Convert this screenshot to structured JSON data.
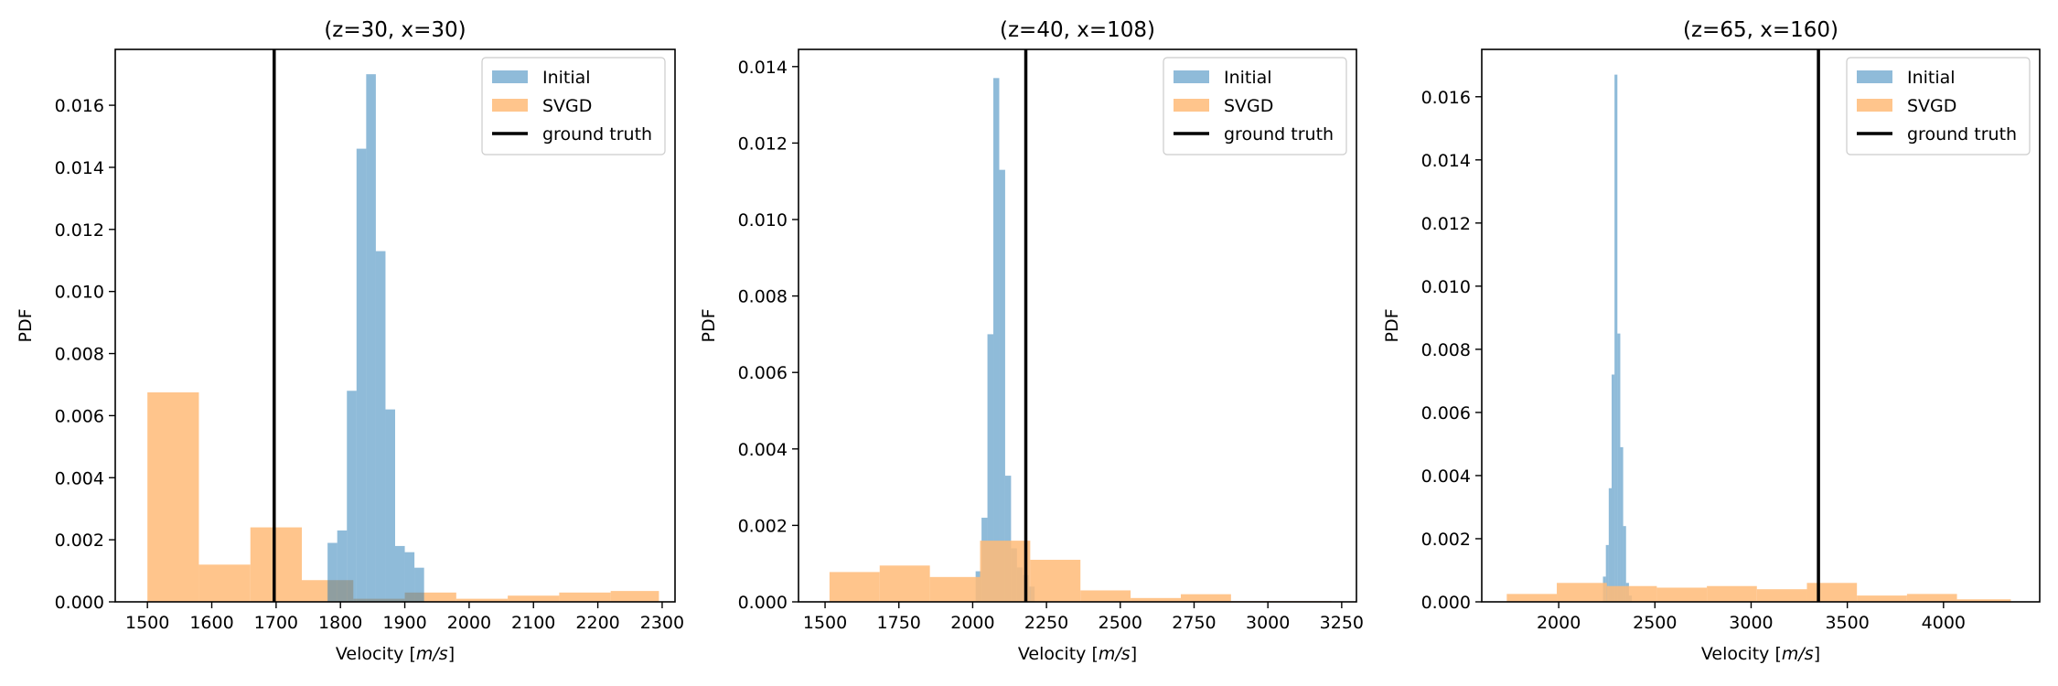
{
  "chart_data": [
    {
      "type": "histogram",
      "title": "(z=30, x=30)",
      "xlabel": "Velocity [m/s]",
      "ylabel": "PDF",
      "xlim": [
        1450,
        2320
      ],
      "ylim": [
        0,
        0.0178
      ],
      "xticks": [
        1500,
        1600,
        1700,
        1800,
        1900,
        2000,
        2100,
        2200,
        2300
      ],
      "xtick_labels": [
        "1500",
        "1600",
        "1700",
        "1800",
        "1900",
        "2000",
        "2100",
        "2200",
        "2300"
      ],
      "yticks": [
        0,
        0.002,
        0.004,
        0.006,
        0.008,
        0.01,
        0.012,
        0.014,
        0.016
      ],
      "ytick_labels": [
        "0.000",
        "0.002",
        "0.004",
        "0.006",
        "0.008",
        "0.010",
        "0.012",
        "0.014",
        "0.016"
      ],
      "ground_truth": 1697,
      "legend": "top-right",
      "series": [
        {
          "name": "SVGD",
          "color": "#ffbb78",
          "bins": [
            {
              "x0": 1500,
              "x1": 1580,
              "y": 0.00675
            },
            {
              "x0": 1580,
              "x1": 1660,
              "y": 0.0012
            },
            {
              "x0": 1660,
              "x1": 1740,
              "y": 0.0024
            },
            {
              "x0": 1740,
              "x1": 1820,
              "y": 0.0007
            },
            {
              "x0": 1820,
              "x1": 1900,
              "y": 0.0001
            },
            {
              "x0": 1900,
              "x1": 1980,
              "y": 0.0003
            },
            {
              "x0": 1980,
              "x1": 2060,
              "y": 0.0001
            },
            {
              "x0": 2060,
              "x1": 2140,
              "y": 0.0002
            },
            {
              "x0": 2140,
              "x1": 2220,
              "y": 0.0003
            },
            {
              "x0": 2220,
              "x1": 2295,
              "y": 0.00035
            }
          ]
        },
        {
          "name": "Initial",
          "color": "#1f77b4",
          "bins": [
            {
              "x0": 1780,
              "x1": 1795,
              "y": 0.0019
            },
            {
              "x0": 1795,
              "x1": 1810,
              "y": 0.0023
            },
            {
              "x0": 1810,
              "x1": 1825,
              "y": 0.0068
            },
            {
              "x0": 1825,
              "x1": 1840,
              "y": 0.0146
            },
            {
              "x0": 1840,
              "x1": 1855,
              "y": 0.017
            },
            {
              "x0": 1855,
              "x1": 1870,
              "y": 0.0113
            },
            {
              "x0": 1870,
              "x1": 1885,
              "y": 0.0062
            },
            {
              "x0": 1885,
              "x1": 1900,
              "y": 0.0018
            },
            {
              "x0": 1900,
              "x1": 1915,
              "y": 0.0016
            },
            {
              "x0": 1915,
              "x1": 1930,
              "y": 0.0011
            }
          ]
        }
      ]
    },
    {
      "type": "histogram",
      "title": "(z=40, x=108)",
      "xlabel": "Velocity [m/s]",
      "ylabel": "PDF",
      "xlim": [
        1410,
        3300
      ],
      "ylim": [
        0,
        0.01445
      ],
      "xticks": [
        1500,
        1750,
        2000,
        2250,
        2500,
        2750,
        3000,
        3250
      ],
      "xtick_labels": [
        "1500",
        "1750",
        "2000",
        "2250",
        "2500",
        "2750",
        "3000",
        "3250"
      ],
      "yticks": [
        0,
        0.002,
        0.004,
        0.006,
        0.008,
        0.01,
        0.012,
        0.014
      ],
      "ytick_labels": [
        "0.000",
        "0.002",
        "0.004",
        "0.006",
        "0.008",
        "0.010",
        "0.012",
        "0.014"
      ],
      "ground_truth": 2180,
      "legend": "top-right",
      "series": [
        {
          "name": "Initial",
          "color": "#1f77b4",
          "bins": [
            {
              "x0": 2010,
              "x1": 2030,
              "y": 0.0008
            },
            {
              "x0": 2030,
              "x1": 2050,
              "y": 0.0022
            },
            {
              "x0": 2050,
              "x1": 2070,
              "y": 0.007
            },
            {
              "x0": 2070,
              "x1": 2090,
              "y": 0.0137
            },
            {
              "x0": 2090,
              "x1": 2110,
              "y": 0.0113
            },
            {
              "x0": 2110,
              "x1": 2130,
              "y": 0.0033
            },
            {
              "x0": 2130,
              "x1": 2150,
              "y": 0.0014
            },
            {
              "x0": 2150,
              "x1": 2170,
              "y": 0.0009
            },
            {
              "x0": 2170,
              "x1": 2190,
              "y": 0.0007
            },
            {
              "x0": 2190,
              "x1": 2210,
              "y": 0.0004
            }
          ]
        },
        {
          "name": "SVGD",
          "color": "#ffbb78",
          "bins": [
            {
              "x0": 1515,
              "x1": 1685,
              "y": 0.00078
            },
            {
              "x0": 1685,
              "x1": 1855,
              "y": 0.00095
            },
            {
              "x0": 1855,
              "x1": 2025,
              "y": 0.00065
            },
            {
              "x0": 2025,
              "x1": 2195,
              "y": 0.0016
            },
            {
              "x0": 2195,
              "x1": 2365,
              "y": 0.0011
            },
            {
              "x0": 2365,
              "x1": 2535,
              "y": 0.0003
            },
            {
              "x0": 2535,
              "x1": 2705,
              "y": 0.0001
            },
            {
              "x0": 2705,
              "x1": 2875,
              "y": 0.0002
            },
            {
              "x0": 2875,
              "x1": 3045,
              "y": 2e-05
            },
            {
              "x0": 3045,
              "x1": 3215,
              "y": 2e-05
            }
          ]
        }
      ]
    },
    {
      "type": "histogram",
      "title": "(z=65, x=160)",
      "xlabel": "Velocity [m/s]",
      "ylabel": "PDF",
      "xlim": [
        1600,
        4500
      ],
      "ylim": [
        0,
        0.0175
      ],
      "xticks": [
        2000,
        2500,
        3000,
        3500,
        4000
      ],
      "xtick_labels": [
        "2000",
        "2500",
        "3000",
        "3500",
        "4000"
      ],
      "yticks": [
        0,
        0.002,
        0.004,
        0.006,
        0.008,
        0.01,
        0.012,
        0.014,
        0.016
      ],
      "ytick_labels": [
        "0.000",
        "0.002",
        "0.004",
        "0.006",
        "0.008",
        "0.010",
        "0.012",
        "0.014",
        "0.016"
      ],
      "ground_truth": 3350,
      "legend": "top-right",
      "series": [
        {
          "name": "Initial",
          "color": "#1f77b4",
          "bins": [
            {
              "x0": 2230,
              "x1": 2245,
              "y": 0.0008
            },
            {
              "x0": 2245,
              "x1": 2260,
              "y": 0.0018
            },
            {
              "x0": 2260,
              "x1": 2275,
              "y": 0.0036
            },
            {
              "x0": 2275,
              "x1": 2290,
              "y": 0.0072
            },
            {
              "x0": 2290,
              "x1": 2305,
              "y": 0.0167
            },
            {
              "x0": 2305,
              "x1": 2320,
              "y": 0.0085
            },
            {
              "x0": 2320,
              "x1": 2335,
              "y": 0.0049
            },
            {
              "x0": 2335,
              "x1": 2350,
              "y": 0.0024
            },
            {
              "x0": 2350,
              "x1": 2365,
              "y": 0.0006
            },
            {
              "x0": 2365,
              "x1": 2380,
              "y": 0.0002
            }
          ]
        },
        {
          "name": "SVGD",
          "color": "#ffbb78",
          "bins": [
            {
              "x0": 1730,
              "x1": 1990,
              "y": 0.00025
            },
            {
              "x0": 1990,
              "x1": 2250,
              "y": 0.0006
            },
            {
              "x0": 2250,
              "x1": 2510,
              "y": 0.0005
            },
            {
              "x0": 2510,
              "x1": 2770,
              "y": 0.00045
            },
            {
              "x0": 2770,
              "x1": 3030,
              "y": 0.0005
            },
            {
              "x0": 3030,
              "x1": 3290,
              "y": 0.0004
            },
            {
              "x0": 3290,
              "x1": 3550,
              "y": 0.0006
            },
            {
              "x0": 3550,
              "x1": 3810,
              "y": 0.0002
            },
            {
              "x0": 3810,
              "x1": 4070,
              "y": 0.00025
            },
            {
              "x0": 4070,
              "x1": 4350,
              "y": 8e-05
            }
          ]
        }
      ]
    }
  ],
  "legend_labels": {
    "initial": "Initial",
    "svgd": "SVGD",
    "ground_truth": "ground truth"
  },
  "colors": {
    "initial": "#1f77b4",
    "svgd": "#ffbb78",
    "ground_truth": "#000000"
  }
}
